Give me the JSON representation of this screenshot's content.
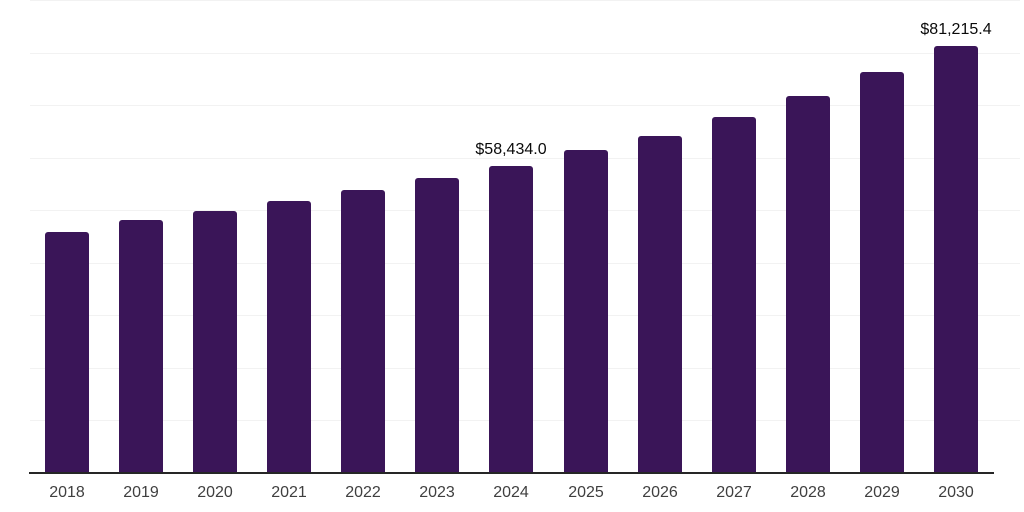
{
  "chart_data": {
    "type": "bar",
    "title": "",
    "xlabel": "",
    "ylabel": "",
    "categories": [
      "2018",
      "2019",
      "2020",
      "2021",
      "2022",
      "2023",
      "2024",
      "2025",
      "2026",
      "2027",
      "2028",
      "2029",
      "2030"
    ],
    "values": [
      45800,
      48100,
      49900,
      51800,
      53900,
      56100,
      58434.0,
      61400,
      64200,
      67700,
      71800,
      76300,
      81215.4
    ],
    "data_labels": [
      null,
      null,
      null,
      null,
      null,
      null,
      "$58,434.0",
      null,
      null,
      null,
      null,
      null,
      "$81,215.4"
    ],
    "ylim": [
      0,
      90000
    ],
    "gridline_step": 10000,
    "grid": "horizontal-only",
    "legend": "none",
    "colors": {
      "bar": "#3a1558",
      "axis_line": "#262626",
      "gridline": "#f2f2f2",
      "value_label": "#0a0a0a",
      "year_label": "#3f3f3f",
      "background": "#ffffff"
    }
  }
}
